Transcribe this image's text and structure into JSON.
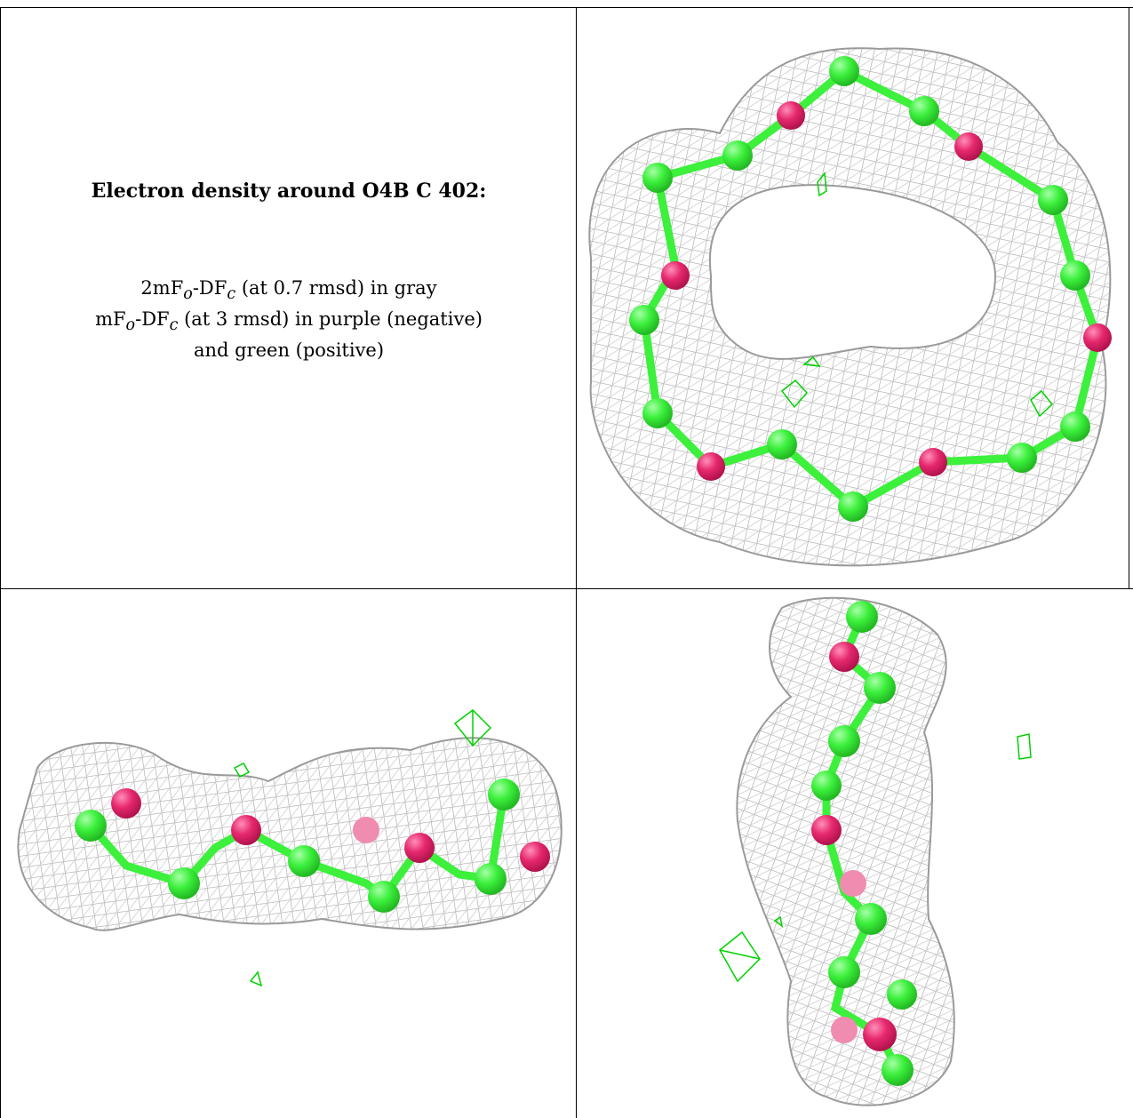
{
  "caption": {
    "title": "Electron density around O4B C 402:",
    "line1_prefix": "2mF",
    "line1_sub_o": "o",
    "line1_mid": "-DF",
    "line1_sub_c": "c",
    "line1_suffix": " (at 0.7 rmsd) in gray",
    "line2_prefix": "mF",
    "line2_sub_o": "o",
    "line2_mid": "-DF",
    "line2_sub_c": "c",
    "line2_suffix": " (at 3 rmsd) in purple (negative)",
    "line3": "and green (positive)"
  },
  "colors": {
    "mesh_gray": "#b4b4b4",
    "carbon_green": "#3cf03c",
    "oxygen_magenta": "#e6286e",
    "positive_green": "#00d200"
  },
  "panels": [
    {
      "view": "top-right"
    },
    {
      "view": "bottom-left"
    },
    {
      "view": "bottom-right"
    }
  ]
}
